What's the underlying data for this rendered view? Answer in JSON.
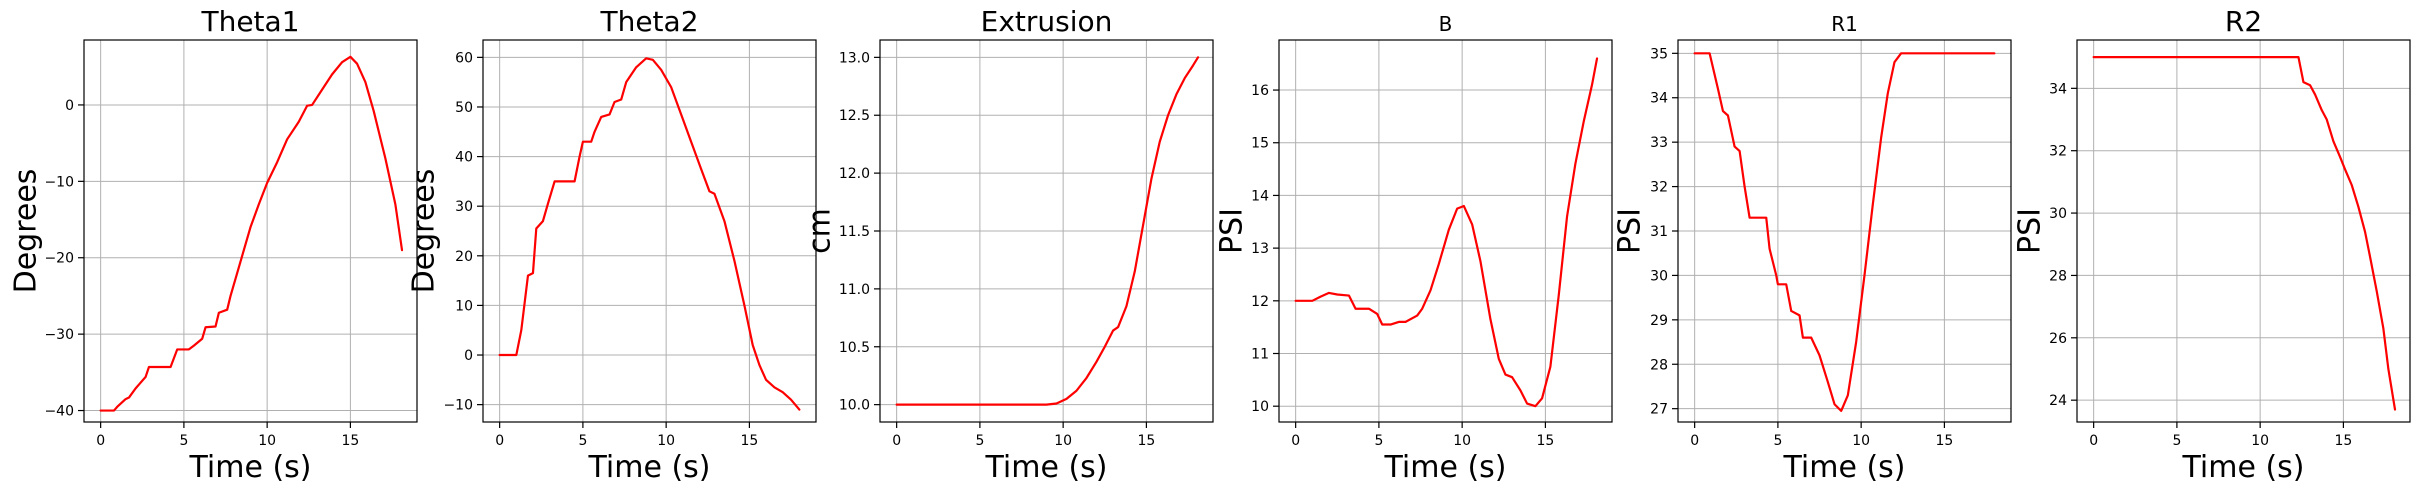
{
  "chart_data": [
    {
      "type": "line",
      "title": "Theta1",
      "xlabel": "Time (s)",
      "ylabel": "Degrees",
      "xlim": [
        -1,
        19
      ],
      "ylim": [
        -41.5,
        8.5
      ],
      "xticks": [
        0,
        5,
        10,
        15
      ],
      "yticks": [
        -40,
        -30,
        -20,
        -10,
        0
      ],
      "yticklabels": [
        "−40",
        "−30",
        "−20",
        "−10",
        "0"
      ],
      "grid": true,
      "series": [
        {
          "color": "#ff0000",
          "x": [
            0,
            0.8,
            1.0,
            1.5,
            1.7,
            2.1,
            2.3,
            2.7,
            2.9,
            3.4,
            4.2,
            4.6,
            5.3,
            5.6,
            6.1,
            6.3,
            6.9,
            7.1,
            7.6,
            7.8,
            8.2,
            8.6,
            9.0,
            9.5,
            10.0,
            10.6,
            11.2,
            11.9,
            12.4,
            12.7,
            13.3,
            13.9,
            14.5,
            15.0,
            15.4,
            15.9,
            16.4,
            17.1,
            17.7,
            18.1
          ],
          "y": [
            -40,
            -40,
            -39.5,
            -38.5,
            -38.3,
            -37.1,
            -36.6,
            -35.6,
            -34.3,
            -34.3,
            -34.3,
            -32,
            -32,
            -31.5,
            -30.6,
            -29.1,
            -29,
            -27.2,
            -26.8,
            -25,
            -22,
            -19,
            -16,
            -13,
            -10.2,
            -7.5,
            -4.5,
            -2.2,
            -0.1,
            0,
            2,
            4,
            5.6,
            6.3,
            5.4,
            3,
            -0.8,
            -7,
            -13,
            -19
          ]
        }
      ]
    },
    {
      "type": "line",
      "title": "Theta2",
      "xlabel": "Time (s)",
      "ylabel": "Degrees",
      "xlim": [
        -1,
        19
      ],
      "ylim": [
        -13.5,
        63.5
      ],
      "xticks": [
        0,
        5,
        10,
        15
      ],
      "yticks": [
        -10,
        0,
        10,
        20,
        30,
        40,
        50,
        60
      ],
      "yticklabels": [
        "−10",
        "0",
        "10",
        "20",
        "30",
        "40",
        "50",
        "60"
      ],
      "grid": true,
      "series": [
        {
          "color": "#ff0000",
          "x": [
            0,
            1.0,
            1.3,
            1.7,
            2.0,
            2.2,
            2.6,
            2.9,
            3.3,
            3.5,
            4.5,
            4.8,
            5.0,
            5.5,
            5.7,
            6.1,
            6.6,
            6.9,
            7.3,
            7.6,
            8.2,
            8.8,
            9.2,
            9.7,
            10.3,
            10.9,
            11.5,
            12.1,
            12.6,
            12.9,
            13.5,
            14.1,
            14.7,
            15.2,
            15.6,
            16.0,
            16.5,
            17.0,
            17.5,
            18.0
          ],
          "y": [
            0,
            0,
            5,
            16,
            16.5,
            25.5,
            27,
            30.5,
            35,
            35,
            35,
            40,
            43,
            43,
            45,
            48,
            48.5,
            51,
            51.5,
            55,
            58,
            59.8,
            59.5,
            57.5,
            54,
            48.5,
            43,
            37.5,
            33,
            32.5,
            27,
            19,
            10,
            2,
            -2,
            -5,
            -6.5,
            -7.5,
            -9,
            -11
          ]
        }
      ]
    },
    {
      "type": "line",
      "title": "Extrusion",
      "xlabel": "Time (s)",
      "ylabel": "cm",
      "xlim": [
        -1,
        19
      ],
      "ylim": [
        9.85,
        13.15
      ],
      "xticks": [
        0,
        5,
        10,
        15
      ],
      "yticks": [
        10.0,
        10.5,
        11.0,
        11.5,
        12.0,
        12.5,
        13.0
      ],
      "yticklabels": [
        "10.0",
        "10.5",
        "11.0",
        "11.5",
        "12.0",
        "12.5",
        "13.0"
      ],
      "grid": true,
      "series": [
        {
          "color": "#ff0000",
          "x": [
            0,
            9.0,
            9.6,
            10.2,
            10.8,
            11.4,
            12.0,
            12.5,
            13.0,
            13.3,
            13.8,
            14.3,
            14.8,
            15.3,
            15.8,
            16.3,
            16.8,
            17.3,
            17.8,
            18.1
          ],
          "y": [
            10,
            10,
            10.01,
            10.05,
            10.12,
            10.23,
            10.37,
            10.5,
            10.64,
            10.67,
            10.85,
            11.15,
            11.55,
            11.95,
            12.27,
            12.5,
            12.68,
            12.82,
            12.93,
            13.0
          ]
        }
      ]
    },
    {
      "type": "line",
      "title": "B",
      "xlabel": "Time (s)",
      "ylabel": "PSI",
      "xlim": [
        -1,
        19
      ],
      "ylim": [
        9.7,
        16.95
      ],
      "xticks": [
        0,
        5,
        10,
        15
      ],
      "yticks": [
        10,
        11,
        12,
        13,
        14,
        15,
        16
      ],
      "yticklabels": [
        "10",
        "11",
        "12",
        "13",
        "14",
        "15",
        "16"
      ],
      "grid": true,
      "series": [
        {
          "color": "#ff0000",
          "x": [
            0,
            1.0,
            1.5,
            2.0,
            2.5,
            3.2,
            3.6,
            4.4,
            4.9,
            5.2,
            5.7,
            6.2,
            6.6,
            7.3,
            7.6,
            8.1,
            8.6,
            9.2,
            9.7,
            10.1,
            10.6,
            11.1,
            11.7,
            12.2,
            12.6,
            13.0,
            13.5,
            13.9,
            14.4,
            14.8,
            15.3,
            15.8,
            16.3,
            16.8,
            17.3,
            17.8,
            18.1
          ],
          "y": [
            12,
            12,
            12.08,
            12.15,
            12.12,
            12.1,
            11.85,
            11.85,
            11.75,
            11.55,
            11.55,
            11.6,
            11.6,
            11.72,
            11.85,
            12.2,
            12.7,
            13.35,
            13.75,
            13.8,
            13.45,
            12.75,
            11.65,
            10.9,
            10.6,
            10.55,
            10.3,
            10.05,
            10.0,
            10.15,
            10.75,
            12.1,
            13.6,
            14.6,
            15.4,
            16.1,
            16.6
          ]
        }
      ]
    },
    {
      "type": "line",
      "title": "R1",
      "xlabel": "Time (s)",
      "ylabel": "PSI",
      "xlim": [
        -1,
        19
      ],
      "ylim": [
        26.7,
        35.3
      ],
      "xticks": [
        0,
        5,
        10,
        15
      ],
      "yticks": [
        27,
        28,
        29,
        30,
        31,
        32,
        33,
        34,
        35
      ],
      "yticklabels": [
        "27",
        "28",
        "29",
        "30",
        "31",
        "32",
        "33",
        "34",
        "35"
      ],
      "grid": true,
      "series": [
        {
          "color": "#ff0000",
          "x": [
            0,
            0.9,
            1.4,
            1.7,
            2.0,
            2.4,
            2.7,
            3.0,
            3.3,
            3.7,
            4.3,
            4.5,
            4.9,
            5.0,
            5.5,
            5.8,
            6.3,
            6.5,
            7.0,
            7.5,
            8.0,
            8.4,
            8.8,
            9.2,
            9.7,
            10.2,
            10.7,
            11.2,
            11.6,
            12.0,
            12.4,
            12.7,
            13.5,
            15.0,
            16.5,
            18.0
          ],
          "y": [
            35,
            35,
            34.2,
            33.7,
            33.6,
            32.9,
            32.8,
            32.0,
            31.3,
            31.3,
            31.3,
            30.6,
            30.0,
            29.8,
            29.8,
            29.2,
            29.1,
            28.6,
            28.6,
            28.2,
            27.6,
            27.1,
            26.95,
            27.3,
            28.5,
            30.0,
            31.6,
            33.1,
            34.1,
            34.8,
            35.0,
            35.0,
            35.0,
            35.0,
            35.0,
            35.0
          ]
        }
      ]
    },
    {
      "type": "line",
      "title": "R2",
      "xlabel": "Time (s)",
      "ylabel": "PSI",
      "xlim": [
        -1,
        19
      ],
      "ylim": [
        23.3,
        35.55
      ],
      "xticks": [
        0,
        5,
        10,
        15
      ],
      "yticks": [
        24,
        26,
        28,
        30,
        32,
        34
      ],
      "yticklabels": [
        "24",
        "26",
        "28",
        "30",
        "32",
        "34"
      ],
      "grid": true,
      "series": [
        {
          "color": "#ff0000",
          "x": [
            0,
            12.0,
            12.3,
            12.6,
            13.0,
            13.3,
            13.7,
            14.0,
            14.4,
            14.8,
            15.1,
            15.5,
            15.9,
            16.3,
            16.6,
            17.0,
            17.4,
            17.7,
            18.1
          ],
          "y": [
            35,
            35,
            35,
            34.2,
            34.1,
            33.8,
            33.3,
            33.0,
            32.3,
            31.8,
            31.4,
            30.9,
            30.2,
            29.4,
            28.6,
            27.5,
            26.3,
            25.0,
            23.7
          ]
        }
      ]
    }
  ]
}
